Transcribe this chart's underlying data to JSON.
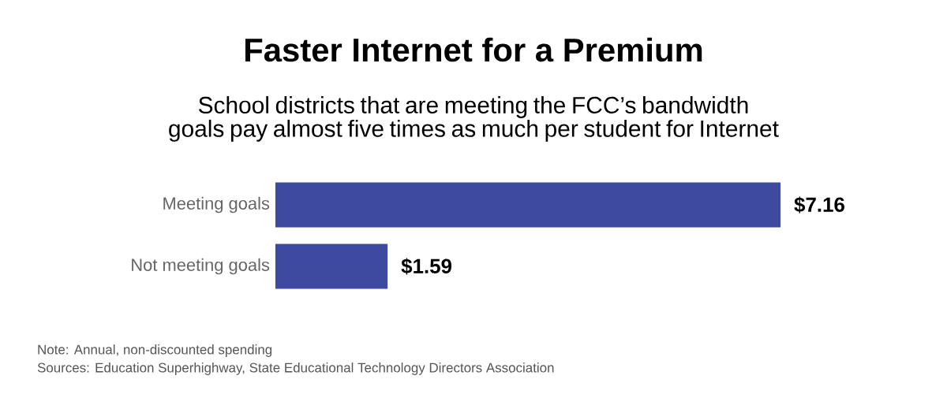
{
  "chart_data": {
    "type": "bar",
    "orientation": "horizontal",
    "title": "Faster Internet for a Premium",
    "subtitle": "School districts that are meeting the FCC’s bandwidth goals pay almost five times as much per student for Internet",
    "categories": [
      "Meeting goals",
      "Not meeting goals"
    ],
    "values": [
      7.16,
      1.59
    ],
    "value_labels": [
      "$7.16",
      "$1.59"
    ],
    "color": "#3d4aa0",
    "annotations": [
      "Note: Annual, non-discounted spending",
      "Sources: Education Superhighway, State Educational Technology Directors Association"
    ]
  }
}
